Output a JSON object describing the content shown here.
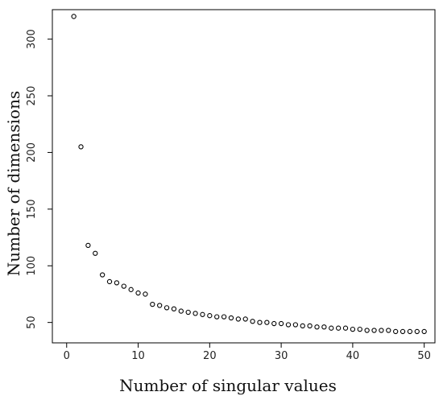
{
  "chart_data": {
    "type": "scatter",
    "title": "",
    "xlabel": "Number of singular values",
    "ylabel": "Number of dimensions",
    "xlim": [
      -2,
      51.5
    ],
    "ylim": [
      32,
      326
    ],
    "xticks": [
      0,
      10,
      20,
      30,
      40,
      50
    ],
    "yticks": [
      50,
      100,
      150,
      200,
      250,
      300
    ],
    "x_tick_labels": [
      "0",
      "10",
      "20",
      "30",
      "40",
      "50"
    ],
    "y_tick_labels": [
      "50",
      "100",
      "150",
      "200",
      "250",
      "300"
    ],
    "grid": false,
    "legend": "none",
    "marker": "open-circle",
    "colors": {
      "axis": "#000000",
      "marker": "#000000"
    },
    "series": [
      {
        "x": [
          1,
          2,
          3,
          4,
          5,
          6,
          7,
          8,
          9,
          10,
          11,
          12,
          13,
          14,
          15,
          16,
          17,
          18,
          19,
          20,
          21,
          22,
          23,
          24,
          25,
          26,
          27,
          28,
          29,
          30,
          31,
          32,
          33,
          34,
          35,
          36,
          37,
          38,
          39,
          40,
          41,
          42,
          43,
          44,
          45,
          46,
          47,
          48,
          49,
          50
        ],
        "y": [
          320,
          205,
          118,
          111,
          92,
          86,
          85,
          82,
          79,
          76,
          75,
          66,
          65,
          63,
          62,
          60,
          59,
          58,
          57,
          56,
          55,
          55,
          54,
          53,
          53,
          51,
          50,
          50,
          49,
          49,
          48,
          48,
          47,
          47,
          46,
          46,
          45,
          45,
          45,
          44,
          44,
          43,
          43,
          43,
          43,
          42,
          42,
          42,
          42,
          42
        ]
      }
    ]
  }
}
